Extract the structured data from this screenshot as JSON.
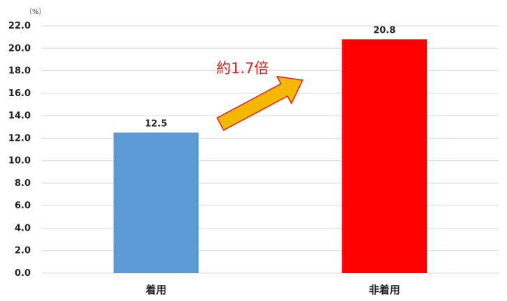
{
  "chart_data": {
    "type": "bar",
    "categories": [
      "着用",
      "非着用"
    ],
    "values": [
      12.5,
      20.8
    ],
    "data_labels": [
      "12.5",
      "20.8"
    ],
    "bar_colors": [
      "#5b9bd5",
      "#ff0000"
    ],
    "unit": "（%）",
    "ylim": [
      0,
      22
    ],
    "yticks": [
      "0.0",
      "2.0",
      "4.0",
      "6.0",
      "8.0",
      "10.0",
      "12.0",
      "14.0",
      "16.0",
      "18.0",
      "20.0",
      "22.0"
    ],
    "grid": true,
    "annotation": {
      "text": "約1.7倍",
      "color": "#e02020",
      "arrow_color": "#f5b800",
      "arrow_outline": "#e02020"
    }
  }
}
